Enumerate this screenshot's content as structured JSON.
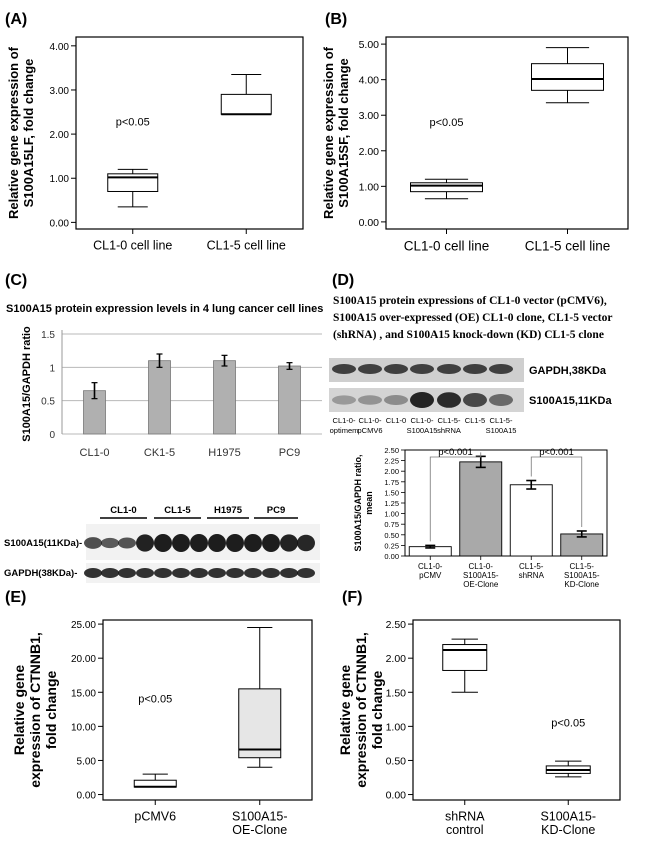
{
  "panels": {
    "A": {
      "letter": "(A)"
    },
    "B": {
      "letter": "(B)"
    },
    "C": {
      "letter": "(C)"
    },
    "D": {
      "letter": "(D)"
    },
    "E": {
      "letter": "(E)"
    },
    "F": {
      "letter": "(F)"
    }
  },
  "chart_data": [
    {
      "id": "A",
      "type": "box",
      "ylabel_line1": "Relative gene expression of",
      "ylabel_line2": "S100A15LF, fold change",
      "categories": [
        "CL1-0 cell line",
        "CL1-5 cell line"
      ],
      "yticks": [
        "0.00",
        "1.00",
        "2.00",
        "3.00",
        "4.00"
      ],
      "ylim": [
        -0.15,
        4.2
      ],
      "boxes": [
        {
          "min": 0.35,
          "q1": 0.7,
          "median": 1.02,
          "q3": 1.1,
          "max": 1.2
        },
        {
          "min": 2.45,
          "q1": 2.45,
          "median": 2.45,
          "q3": 2.9,
          "max": 3.35
        }
      ],
      "annotation": "p<0.05",
      "annotation_pos": [
        0.5,
        2.2
      ]
    },
    {
      "id": "B",
      "type": "box",
      "ylabel_line1": "Relative gene expression of",
      "ylabel_line2": "S100A15SF, fold change",
      "categories": [
        "CL1-0 cell line",
        "CL1-5 cell line"
      ],
      "yticks": [
        "0.00",
        "1.00",
        "2.00",
        "3.00",
        "4.00",
        "5.00"
      ],
      "ylim": [
        -0.2,
        5.2
      ],
      "boxes": [
        {
          "min": 0.65,
          "q1": 0.85,
          "median": 1.02,
          "q3": 1.1,
          "max": 1.2
        },
        {
          "min": 3.35,
          "q1": 3.7,
          "median": 4.02,
          "q3": 4.45,
          "max": 4.9
        }
      ],
      "annotation": "p<0.05",
      "annotation_pos": [
        0.5,
        2.7
      ]
    },
    {
      "id": "C",
      "type": "bar",
      "title": "S100A15 protein expression levels in 4 lung cancer cell lines",
      "ylabel": "S100A15/GAPDH ratio",
      "categories": [
        "CL1-0",
        "CK1-5",
        "H1975",
        "PC9"
      ],
      "values": [
        0.65,
        1.1,
        1.1,
        1.02
      ],
      "errors": [
        0.12,
        0.1,
        0.08,
        0.05
      ],
      "yticks": [
        "0",
        "0.5",
        "1",
        "1.5"
      ],
      "ylim": [
        0,
        1.5
      ],
      "blot": {
        "header_labels": [
          "CL1-0",
          "CL1-5",
          "H1975",
          "PC9"
        ],
        "row_labels": [
          "S100A15(11KDa)-",
          "GAPDH(38KDa)-"
        ]
      }
    },
    {
      "id": "D",
      "type": "bar",
      "title_lines": [
        "S100A15 protein expressions of  CL1-0 vector (pCMV6),",
        "S100A15 over-expressed (OE) CL1-0 clone, CL1-5 vector",
        "(shRNA) , and S100A15 knock-down (KD) CL1-5 clone"
      ],
      "blot": {
        "row_labels": [
          "GAPDH,38KDa",
          "S100A15,11KDa"
        ],
        "lane_labels": [
          [
            "CL1-0-",
            "optimem"
          ],
          [
            "CL1-0-",
            "pCMV6"
          ],
          [
            "CL1-0",
            ""
          ],
          [
            "CL1-0-",
            "S100A15"
          ],
          [
            "CL1-5-",
            "shRNA"
          ],
          [
            "CL1-5",
            ""
          ],
          [
            "CL1-5-",
            "S100A15"
          ]
        ]
      },
      "ylabel_line1": "S100A15/GAPDH ratio,",
      "ylabel_line2": "mean",
      "categories": [
        [
          "CL1-0-",
          "pCMV"
        ],
        [
          "CL1-0-",
          "S100A15-",
          "OE-Clone"
        ],
        [
          "CL1-5-",
          "shRNA"
        ],
        [
          "CL1-5-",
          "S100A15-",
          "KD-Clone"
        ]
      ],
      "values": [
        0.22,
        2.22,
        1.68,
        0.52
      ],
      "errors": [
        0.03,
        0.13,
        0.1,
        0.07
      ],
      "fills": [
        "#ffffff",
        "#a9a9a9",
        "#ffffff",
        "#a9a9a9"
      ],
      "yticks": [
        "0.00",
        "0.25",
        "0.50",
        "0.75",
        "1.00",
        "1.25",
        "1.50",
        "1.75",
        "2.00",
        "2.25",
        "2.50"
      ],
      "ylim": [
        0,
        2.5
      ],
      "brackets": [
        {
          "from": 0,
          "to": 1,
          "label": "p<0.001"
        },
        {
          "from": 2,
          "to": 3,
          "label": "p<0.001"
        }
      ]
    },
    {
      "id": "E",
      "type": "box",
      "ylabel_line1": "Relative gene",
      "ylabel_line2": "expression of CTNNB1,",
      "ylabel_line3": "fold change",
      "categories": [
        [
          "pCMV6"
        ],
        [
          "S100A15-",
          "OE-Clone"
        ]
      ],
      "yticks": [
        "0.00",
        "5.00",
        "10.00",
        "15.00",
        "20.00",
        "25.00"
      ],
      "ylim": [
        -0.8,
        25.6
      ],
      "boxes": [
        {
          "min": 1.1,
          "q1": 1.1,
          "median": 1.15,
          "q3": 2.1,
          "max": 3.0,
          "fill": "#ffffff"
        },
        {
          "min": 4.0,
          "q1": 5.4,
          "median": 6.6,
          "q3": 15.5,
          "max": 24.5,
          "fill": "#e6e6e6"
        }
      ],
      "annotation": "p<0.05",
      "annotation_pos": [
        0.5,
        13.5
      ]
    },
    {
      "id": "F",
      "type": "box",
      "ylabel_line1": "Relative gene",
      "ylabel_line2": "expression of CTNNB1,",
      "ylabel_line3": "fold change",
      "categories": [
        [
          "shRNA",
          "control"
        ],
        [
          "S100A15-",
          "KD-Clone"
        ]
      ],
      "yticks": [
        "0.00",
        "0.50",
        "1.00",
        "1.50",
        "2.00",
        "2.50"
      ],
      "ylim": [
        -0.08,
        2.56
      ],
      "boxes": [
        {
          "min": 1.5,
          "q1": 1.82,
          "median": 2.12,
          "q3": 2.2,
          "max": 2.28,
          "fill": "#ffffff"
        },
        {
          "min": 0.26,
          "q1": 0.31,
          "median": 0.36,
          "q3": 0.42,
          "max": 0.49,
          "fill": "#ffffff"
        }
      ],
      "annotation": "p<0.05",
      "annotation_pos": [
        1.5,
        1.0
      ]
    }
  ]
}
